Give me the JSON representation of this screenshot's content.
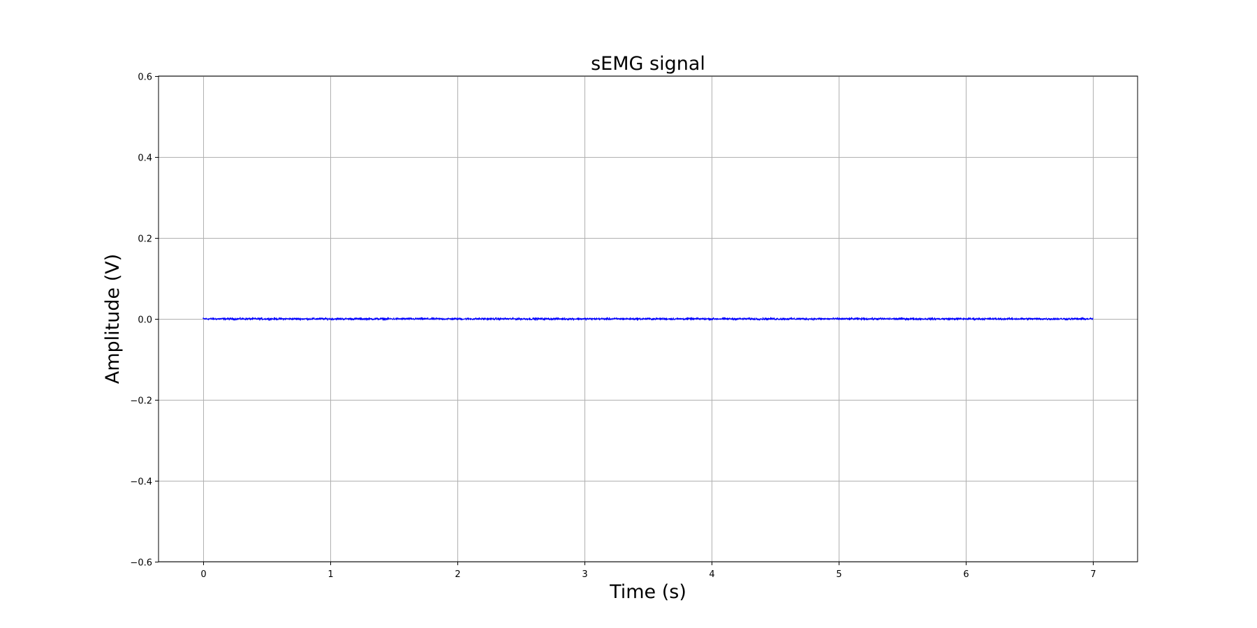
{
  "chart_data": {
    "type": "line",
    "title": "sEMG signal",
    "xlabel": "Time (s)",
    "ylabel": "Amplitude (V)",
    "xlim": [
      -0.35,
      7.35
    ],
    "ylim": [
      -0.6,
      0.6
    ],
    "x_ticks": [
      0,
      1,
      2,
      3,
      4,
      5,
      6,
      7
    ],
    "x_tick_labels": [
      "0",
      "1",
      "2",
      "3",
      "4",
      "5",
      "6",
      "7"
    ],
    "y_ticks": [
      -0.6,
      -0.4,
      -0.2,
      0.0,
      0.2,
      0.4,
      0.6
    ],
    "y_tick_labels": [
      "−0.6",
      "−0.4",
      "−0.2",
      "0.0",
      "0.2",
      "0.4",
      "0.6"
    ],
    "grid": true,
    "series": [
      {
        "color": "#0000ff",
        "x_start": 0,
        "x_end": 7,
        "mean": 0.0,
        "noise_amplitude": 0.004
      }
    ]
  }
}
